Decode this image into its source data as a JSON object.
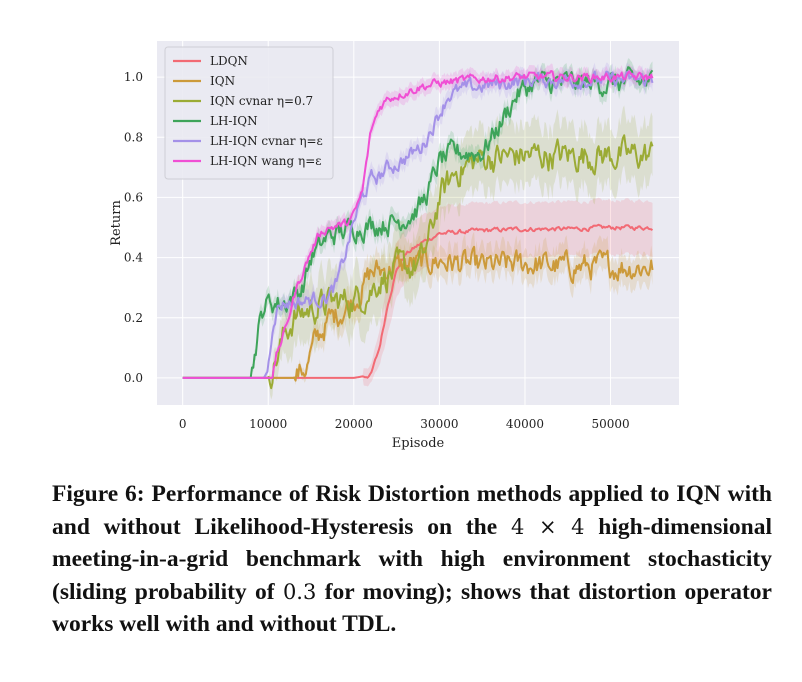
{
  "chart_data": {
    "type": "line",
    "xlabel": "Episode",
    "ylabel": "Return",
    "xlim": [
      -3000,
      58000
    ],
    "ylim": [
      -0.09,
      1.12
    ],
    "xticks": [
      0,
      10000,
      20000,
      30000,
      40000,
      50000
    ],
    "yticks": [
      0.0,
      0.2,
      0.4,
      0.6,
      0.8,
      1.0
    ],
    "xtick_labels": [
      "0",
      "10000",
      "20000",
      "30000",
      "40000",
      "50000"
    ],
    "ytick_labels": [
      "0.0",
      "0.2",
      "0.4",
      "0.6",
      "0.8",
      "1.0"
    ],
    "grid": true,
    "legend_position": "top-left",
    "series": [
      {
        "name": "LDQN",
        "color": "#f26a74",
        "band": 0.09,
        "noise": 0.006,
        "x": [
          0,
          20000,
          22000,
          23000,
          24000,
          25000,
          26000,
          28000,
          30000,
          35000,
          40000,
          45000,
          50000,
          55000
        ],
        "y": [
          0.0,
          0.0,
          0.01,
          0.1,
          0.25,
          0.36,
          0.41,
          0.45,
          0.48,
          0.49,
          0.495,
          0.495,
          0.5,
          0.5
        ]
      },
      {
        "name": "IQN",
        "color": "#cc9a3a",
        "band": 0.05,
        "noise": 0.035,
        "x": [
          0,
          13000,
          14500,
          15500,
          17000,
          18000,
          20000,
          21000,
          22000,
          25000,
          30000,
          35000,
          40000,
          45000,
          50000,
          55000
        ],
        "y": [
          0.0,
          0.0,
          0.04,
          0.12,
          0.19,
          0.21,
          0.26,
          0.3,
          0.35,
          0.37,
          0.39,
          0.37,
          0.38,
          0.37,
          0.37,
          0.37
        ]
      },
      {
        "name": "IQN cvnar η=0.7",
        "color": "#9bab35",
        "band": 0.1,
        "noise": 0.04,
        "x": [
          0,
          10000,
          11000,
          12000,
          13000,
          15000,
          17000,
          20000,
          22000,
          23000,
          24000,
          25000,
          27000,
          28000,
          29000,
          30000,
          32000,
          35000,
          40000,
          45000,
          50000,
          55000
        ],
        "y": [
          0.0,
          0.0,
          0.07,
          0.15,
          0.2,
          0.23,
          0.25,
          0.26,
          0.29,
          0.33,
          0.34,
          0.36,
          0.37,
          0.39,
          0.48,
          0.6,
          0.69,
          0.73,
          0.74,
          0.74,
          0.74,
          0.74
        ]
      },
      {
        "name": "LH-IQN",
        "color": "#3ea45a",
        "band": 0.03,
        "noise": 0.03,
        "x": [
          0,
          8000,
          8800,
          9500,
          10000,
          12000,
          14000,
          15000,
          17000,
          20000,
          25000,
          27000,
          28000,
          29000,
          30000,
          32000,
          35000,
          37000,
          39000,
          41000,
          45000,
          50000,
          55000
        ],
        "y": [
          0.0,
          0.0,
          0.15,
          0.24,
          0.25,
          0.25,
          0.3,
          0.4,
          0.47,
          0.5,
          0.52,
          0.55,
          0.58,
          0.64,
          0.72,
          0.75,
          0.75,
          0.84,
          0.94,
          0.98,
          0.98,
          0.98,
          0.985
        ]
      },
      {
        "name": "LH-IQN cvnar η=ε",
        "color": "#a491e8",
        "band": 0.03,
        "noise": 0.02,
        "x": [
          0,
          9500,
          10000,
          10600,
          11200,
          12000,
          13000,
          15000,
          17000,
          18000,
          19000,
          20000,
          21000,
          22000,
          23000,
          24000,
          25000,
          26000,
          28000,
          30000,
          31000,
          33000,
          35000,
          40000,
          45000,
          50000,
          55000
        ],
        "y": [
          0.0,
          0.0,
          0.04,
          0.2,
          0.24,
          0.25,
          0.25,
          0.26,
          0.27,
          0.31,
          0.41,
          0.52,
          0.6,
          0.66,
          0.67,
          0.7,
          0.71,
          0.73,
          0.77,
          0.88,
          0.94,
          0.96,
          0.97,
          0.99,
          0.99,
          0.99,
          0.99
        ]
      },
      {
        "name": "LH-IQN wang η=ε",
        "color": "#f04fd4",
        "band": 0.025,
        "noise": 0.012,
        "x": [
          0,
          10500,
          11000,
          12000,
          13000,
          14000,
          15000,
          16000,
          17000,
          19000,
          20000,
          21000,
          22000,
          23000,
          24000,
          26000,
          28000,
          30000,
          33000,
          35000,
          40000,
          45000,
          50000,
          55000
        ],
        "y": [
          0.0,
          0.0,
          0.08,
          0.16,
          0.27,
          0.35,
          0.42,
          0.48,
          0.5,
          0.51,
          0.54,
          0.62,
          0.82,
          0.9,
          0.93,
          0.95,
          0.97,
          0.98,
          0.99,
          0.995,
          1.0,
          1.0,
          1.0,
          1.0
        ]
      }
    ]
  },
  "caption": {
    "text_1": "Figure 6: Performance of Risk Distortion methods applied to IQN with and without Likelihood-Hysteresis on the ",
    "math_1": "4 × 4",
    "text_2": " high-dimensional meeting-in-a-grid benchmark with high environment stochasticity (sliding probability of ",
    "math_2": "0.3",
    "text_3": " for moving); shows that distortion operator works well with and without TDL."
  }
}
